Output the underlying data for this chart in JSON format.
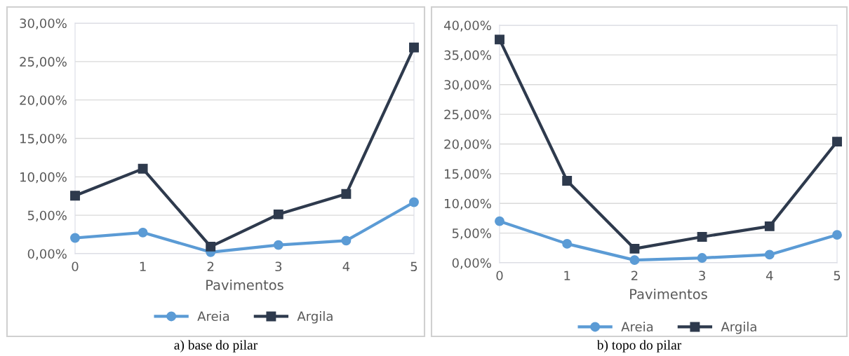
{
  "chart_data": [
    {
      "type": "line",
      "xlabel": "Pavimentos",
      "categories": [
        "0",
        "1",
        "2",
        "3",
        "4",
        "5"
      ],
      "series": [
        {
          "name": "Areia",
          "color": "#5b9bd5",
          "marker": "circle",
          "values": [
            2.05,
            2.75,
            0.2,
            1.13,
            1.7,
            6.7
          ]
        },
        {
          "name": "Argila",
          "color": "#2e3a4d",
          "marker": "square",
          "values": [
            7.55,
            11.05,
            0.92,
            5.12,
            7.77,
            26.83
          ]
        }
      ],
      "ylim": [
        0,
        30
      ],
      "yticks": [
        {
          "value": 0,
          "label": "0,00%"
        },
        {
          "value": 5,
          "label": "5,00%"
        },
        {
          "value": 10,
          "label": "10,00%"
        },
        {
          "value": 15,
          "label": "15,00%"
        },
        {
          "value": 20,
          "label": "20,00%"
        },
        {
          "value": 25,
          "label": "25,00%"
        },
        {
          "value": 30,
          "label": "30,00%"
        }
      ],
      "grid": "y",
      "legend": "bottom",
      "line_style": "solid",
      "annotations": [
        "a) base do pilar"
      ]
    },
    {
      "type": "line",
      "xlabel": "Pavimentos",
      "categories": [
        "0",
        "1",
        "2",
        "3",
        "4",
        "5"
      ],
      "series": [
        {
          "name": "Areia",
          "color": "#5b9bd5",
          "marker": "circle",
          "values": [
            7.0,
            3.2,
            0.46,
            0.82,
            1.37,
            4.7
          ]
        },
        {
          "name": "Argila",
          "color": "#2e3a4d",
          "marker": "square",
          "values": [
            37.6,
            13.8,
            2.37,
            4.37,
            6.15,
            20.4
          ]
        }
      ],
      "ylim": [
        0,
        40
      ],
      "yticks": [
        {
          "value": 0,
          "label": "0,00%"
        },
        {
          "value": 5,
          "label": "5,00%"
        },
        {
          "value": 10,
          "label": "10,00%"
        },
        {
          "value": 15,
          "label": "15,00%"
        },
        {
          "value": 20,
          "label": "20,00%"
        },
        {
          "value": 25,
          "label": "25,00%"
        },
        {
          "value": 30,
          "label": "30,00%"
        },
        {
          "value": 35,
          "label": "35,00%"
        },
        {
          "value": 40,
          "label": "40,00%"
        }
      ],
      "grid": "y",
      "legend": "bottom",
      "line_style": "solid",
      "annotations": [
        "b) topo do pilar"
      ]
    }
  ]
}
